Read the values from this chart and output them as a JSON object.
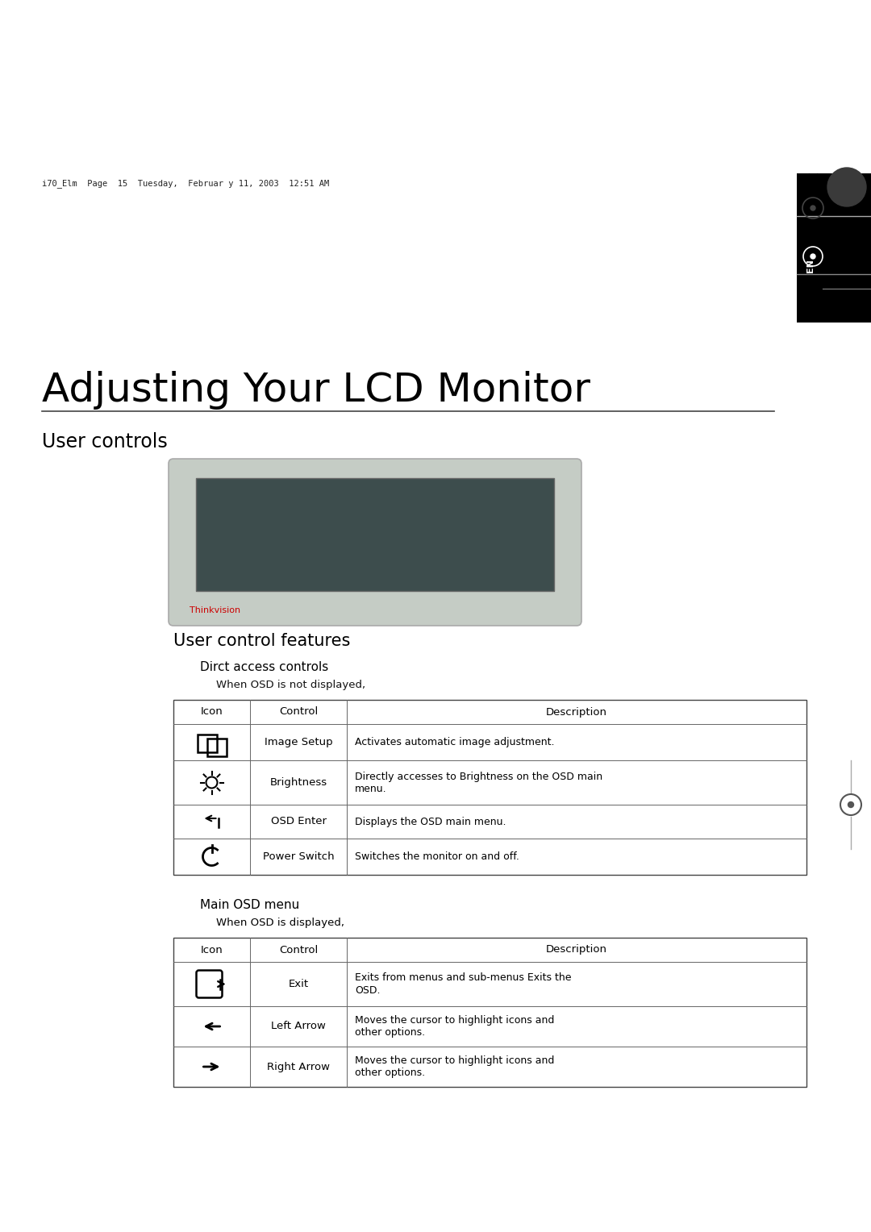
{
  "page_header": "i70_Elm  Page  15  Tuesday,  Februar y 11, 2003  12:51 AM",
  "title": "Adjusting Your LCD Monitor",
  "section": "User controls",
  "subsection": "User control features",
  "dirct_label": "Dirct access controls",
  "dirct_sub": "When OSD is not displayed,",
  "main_osd_label": "Main OSD menu",
  "main_osd_sub": "When OSD is displayed,",
  "table1_headers": [
    "Icon",
    "Control",
    "Description"
  ],
  "table1_rows": [
    [
      "image_setup_icon",
      "Image Setup",
      "Activates automatic image adjustment."
    ],
    [
      "brightness_icon",
      "Brightness",
      "Directly accesses to Brightness on the OSD main\nmenu."
    ],
    [
      "osd_enter_icon",
      "OSD Enter",
      "Displays the OSD main menu."
    ],
    [
      "power_icon",
      "Power Switch",
      "Switches the monitor on and off."
    ]
  ],
  "table2_headers": [
    "Icon",
    "Control",
    "Description"
  ],
  "table2_rows": [
    [
      "exit_icon",
      "Exit",
      "Exits from menus and sub-menus Exits the\nOSD."
    ],
    [
      "left_arrow_icon",
      "Left Arrow",
      "Moves the cursor to highlight icons and\nother options."
    ],
    [
      "right_arrow_icon",
      "Right Arrow",
      "Moves the cursor to highlight icons and\nother options."
    ]
  ],
  "thinkvision_color": "#cc0000",
  "bg_color": "#ffffff",
  "text_color": "#000000"
}
